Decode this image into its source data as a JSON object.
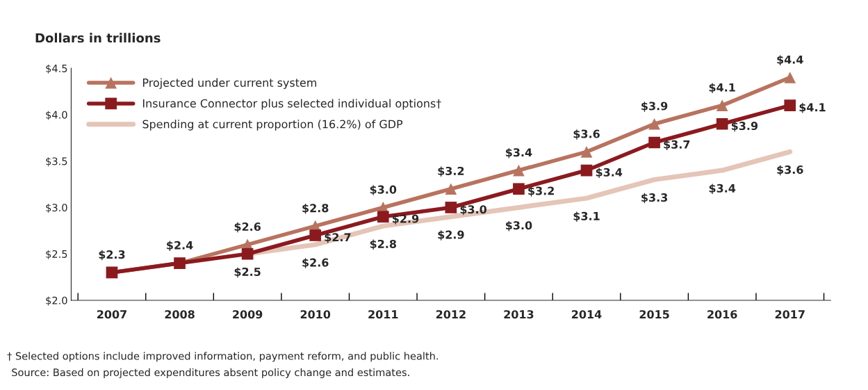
{
  "chart_data": {
    "type": "line",
    "title": "Dollars in trillions",
    "categories": [
      "2007",
      "2008",
      "2009",
      "2010",
      "2011",
      "2012",
      "2013",
      "2014",
      "2015",
      "2016",
      "2017"
    ],
    "series": [
      {
        "name": "Projected under current system",
        "color": "#b8735f",
        "marker": "triangle",
        "values": [
          2.3,
          2.4,
          2.6,
          2.8,
          3.0,
          3.2,
          3.4,
          3.6,
          3.9,
          4.1,
          4.4
        ],
        "value_labels": [
          "$2.3",
          "$2.4",
          "$2.6",
          "$2.8",
          "$3.0",
          "$3.2",
          "$3.4",
          "$3.6",
          "$3.9",
          "$4.1",
          "$4.4"
        ]
      },
      {
        "name": "Insurance Connector plus selected individual options†",
        "color": "#8b1a1f",
        "marker": "square",
        "values": [
          2.3,
          2.4,
          2.5,
          2.7,
          2.9,
          3.0,
          3.2,
          3.4,
          3.7,
          3.9,
          4.1
        ],
        "value_labels": [
          null,
          null,
          null,
          "$2.7",
          "$2.9",
          "$3.0",
          "$3.2",
          "$3.4",
          "$3.7",
          "$3.9",
          "$4.1"
        ]
      },
      {
        "name": "Spending at current proportion (16.2%) of GDP",
        "color": "#e4c5b7",
        "marker": "none",
        "values": [
          null,
          null,
          2.5,
          2.6,
          2.8,
          2.9,
          3.0,
          3.1,
          3.3,
          3.4,
          3.6
        ],
        "value_labels": [
          null,
          null,
          "$2.5",
          "$2.6",
          "$2.8",
          "$2.9",
          "$3.0",
          "$3.1",
          "$3.3",
          "$3.4",
          "$3.6"
        ]
      }
    ],
    "ylim": [
      2.0,
      4.5
    ],
    "yticks": [
      {
        "value": 2.0,
        "label": "$2.0"
      },
      {
        "value": 2.5,
        "label": "$2.5"
      },
      {
        "value": 3.0,
        "label": "$3.0"
      },
      {
        "value": 3.5,
        "label": "$3.5"
      },
      {
        "value": 4.0,
        "label": "$4.0"
      },
      {
        "value": 4.5,
        "label": "$4.5"
      }
    ],
    "grid": false,
    "legend": "top left",
    "line_style": "solid",
    "annotations": [
      "† Selected options include improved information, payment reform, and public health.",
      "Source: Based on projected expenditures absent policy change and estimates."
    ]
  }
}
